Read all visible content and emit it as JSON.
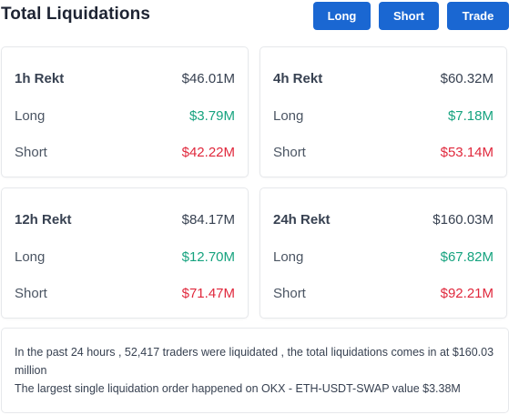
{
  "header": {
    "title": "Total Liquidations",
    "buttons": {
      "long": "Long",
      "short": "Short",
      "trade": "Trade"
    }
  },
  "colors": {
    "accent_button": "#1a67d2",
    "positive": "#16a37f",
    "negative": "#e0283c"
  },
  "cards": [
    {
      "title": "1h Rekt",
      "total": "$46.01M",
      "long_label": "Long",
      "long_value": "$3.79M",
      "short_label": "Short",
      "short_value": "$42.22M"
    },
    {
      "title": "4h Rekt",
      "total": "$60.32M",
      "long_label": "Long",
      "long_value": "$7.18M",
      "short_label": "Short",
      "short_value": "$53.14M"
    },
    {
      "title": "12h Rekt",
      "total": "$84.17M",
      "long_label": "Long",
      "long_value": "$12.70M",
      "short_label": "Short",
      "short_value": "$71.47M"
    },
    {
      "title": "24h Rekt",
      "total": "$160.03M",
      "long_label": "Long",
      "long_value": "$67.82M",
      "short_label": "Short",
      "short_value": "$92.21M"
    }
  ],
  "summary": {
    "line1": "In the past 24 hours , 52,417 traders were liquidated , the total liquidations comes in at $160.03 million",
    "line2": "The largest single liquidation order happened on OKX - ETH-USDT-SWAP value $3.38M"
  }
}
